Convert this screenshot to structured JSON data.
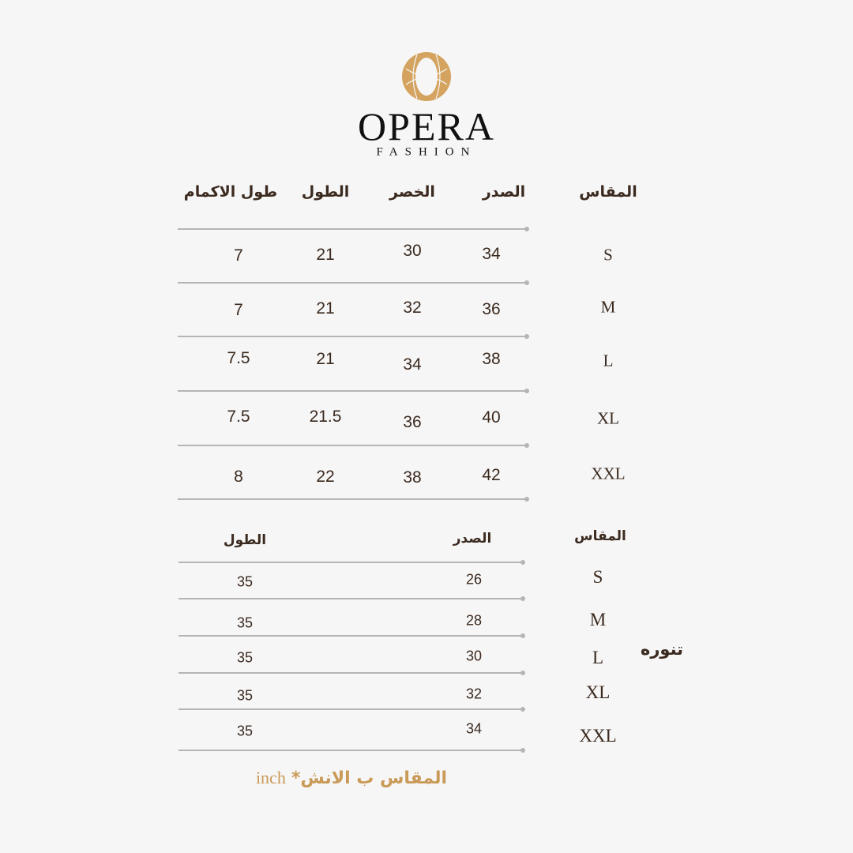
{
  "brand": {
    "name": "OPERA",
    "subtitle": "FASHION",
    "logo_color": "#d4a35f"
  },
  "top_table": {
    "headers": {
      "sleeve": "طول الاكمام",
      "length": "الطول",
      "waist": "الخصر",
      "chest": "الصدر",
      "size": "المقاس"
    },
    "rows": [
      {
        "size": "S",
        "chest": "34",
        "waist": "30",
        "length": "21",
        "sleeve": "7"
      },
      {
        "size": "M",
        "chest": "36",
        "waist": "32",
        "length": "21",
        "sleeve": "7"
      },
      {
        "size": "L",
        "chest": "38",
        "waist": "34",
        "length": "21",
        "sleeve": "7.5"
      },
      {
        "size": "XL",
        "chest": "40",
        "waist": "36",
        "length": "21.5",
        "sleeve": "7.5"
      },
      {
        "size": "XXL",
        "chest": "42",
        "waist": "38",
        "length": "22",
        "sleeve": "8"
      }
    ]
  },
  "skirt_table": {
    "label": "تنوره",
    "headers": {
      "length": "الطول",
      "chest": "الصدر",
      "size": "المقاس"
    },
    "rows": [
      {
        "size": "S",
        "chest": "26",
        "length": "35"
      },
      {
        "size": "M",
        "chest": "28",
        "length": "35"
      },
      {
        "size": "L",
        "chest": "30",
        "length": "35"
      },
      {
        "size": "XL",
        "chest": "32",
        "length": "35"
      },
      {
        "size": "XXL",
        "chest": "34",
        "length": "35"
      }
    ]
  },
  "note": {
    "arabic": "*المقاس ب الانش",
    "english": "inch"
  },
  "colors": {
    "text": "#3b2a1f",
    "accent": "#c99a58",
    "line": "#b5b5b5",
    "background": "#f6f6f6"
  }
}
